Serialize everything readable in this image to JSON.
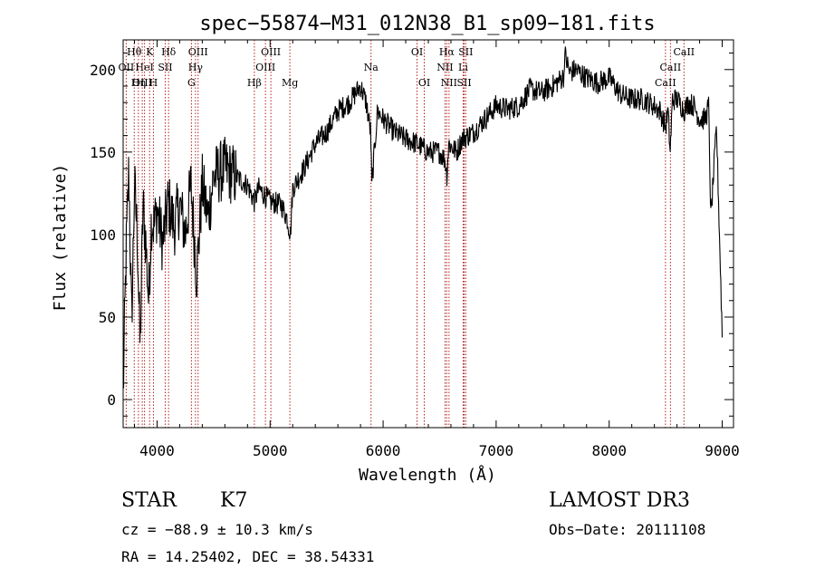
{
  "chart_data": {
    "type": "line",
    "title": "spec−55874−M31_012N38_B1_sp09−181.fits",
    "xlabel": "Wavelength (Å)",
    "ylabel": "Flux (relative)",
    "xlim": [
      3700,
      9100
    ],
    "ylim": [
      -17,
      218
    ],
    "xticks": [
      4000,
      5000,
      6000,
      7000,
      8000,
      9000
    ],
    "xtick_labels": [
      "4000",
      "5000",
      "6000",
      "7000",
      "8000",
      "9000"
    ],
    "yticks": [
      0,
      50,
      100,
      150,
      200
    ],
    "ytick_labels": [
      "0",
      "50",
      "100",
      "150",
      "200"
    ],
    "series": [
      {
        "name": "flux",
        "x": [
          3700,
          3725,
          3750,
          3775,
          3800,
          3825,
          3850,
          3875,
          3900,
          3925,
          3950,
          3975,
          4000,
          4050,
          4100,
          4150,
          4200,
          4250,
          4300,
          4350,
          4400,
          4450,
          4500,
          4600,
          4700,
          4800,
          4860,
          4900,
          5000,
          5100,
          5150,
          5180,
          5200,
          5300,
          5400,
          5500,
          5600,
          5700,
          5800,
          5850,
          5890,
          5900,
          5950,
          6000,
          6100,
          6200,
          6300,
          6400,
          6500,
          6550,
          6563,
          6580,
          6650,
          6700,
          6800,
          6900,
          7000,
          7100,
          7200,
          7300,
          7400,
          7500,
          7600,
          7605,
          7650,
          7700,
          7800,
          7900,
          8000,
          8100,
          8200,
          8300,
          8400,
          8450,
          8500,
          8520,
          8540,
          8560,
          8600,
          8640,
          8662,
          8700,
          8750,
          8800,
          8850,
          8880,
          8900,
          8950,
          9000
        ],
        "y": [
          2,
          85,
          140,
          45,
          130,
          100,
          30,
          118,
          95,
          60,
          110,
          105,
          115,
          95,
          120,
          105,
          118,
          100,
          130,
          75,
          130,
          110,
          135,
          140,
          135,
          130,
          120,
          128,
          120,
          118,
          110,
          100,
          128,
          140,
          155,
          162,
          175,
          180,
          190,
          180,
          162,
          130,
          175,
          170,
          162,
          158,
          155,
          150,
          150,
          145,
          135,
          155,
          150,
          158,
          162,
          170,
          178,
          176,
          178,
          188,
          186,
          190,
          196,
          210,
          198,
          200,
          195,
          192,
          195,
          185,
          182,
          182,
          178,
          175,
          165,
          175,
          150,
          182,
          182,
          178,
          175,
          180,
          178,
          170,
          170,
          178,
          110,
          165,
          40
        ],
        "noise_amplitude": 7
      }
    ],
    "line_markers": [
      {
        "label": "Hθ",
        "wavelength": 3798,
        "row": 0
      },
      {
        "label": "K",
        "wavelength": 3934,
        "row": 0
      },
      {
        "label": "Hδ",
        "wavelength": 4102,
        "row": 0
      },
      {
        "label": "OIII",
        "wavelength": 4363,
        "row": 0
      },
      {
        "label": "OIII",
        "wavelength": 5007,
        "row": 0
      },
      {
        "label": "OI",
        "wavelength": 6300,
        "row": 0
      },
      {
        "label": "Hα",
        "wavelength": 6563,
        "row": 0
      },
      {
        "label": "SII",
        "wavelength": 6731,
        "row": 0
      },
      {
        "label": "CaII",
        "wavelength": 8662,
        "row": 0
      },
      {
        "label": "OII",
        "wavelength": 3727,
        "row": 1
      },
      {
        "label": "HeI",
        "wavelength": 3889,
        "row": 1
      },
      {
        "label": "SII",
        "wavelength": 4072,
        "row": 1
      },
      {
        "label": "Hγ",
        "wavelength": 4340,
        "row": 1
      },
      {
        "label": "OIII",
        "wavelength": 4959,
        "row": 1
      },
      {
        "label": "Na",
        "wavelength": 5893,
        "row": 1
      },
      {
        "label": "NII",
        "wavelength": 6548,
        "row": 1
      },
      {
        "label": "Li",
        "wavelength": 6708,
        "row": 1
      },
      {
        "label": "CaII",
        "wavelength": 8542,
        "row": 1
      },
      {
        "label": "OIII",
        "wavelength": 3869,
        "row": 2
      },
      {
        "label": "Hη",
        "wavelength": 3835,
        "row": 2
      },
      {
        "label": "H",
        "wavelength": 3968,
        "row": 2
      },
      {
        "label": "G",
        "wavelength": 4304,
        "row": 2
      },
      {
        "label": "Hβ",
        "wavelength": 4861,
        "row": 2
      },
      {
        "label": "Mg",
        "wavelength": 5175,
        "row": 2
      },
      {
        "label": "OI",
        "wavelength": 6364,
        "row": 2
      },
      {
        "label": "NII",
        "wavelength": 6583,
        "row": 2
      },
      {
        "label": "SII",
        "wavelength": 6717,
        "row": 2
      },
      {
        "label": "CaII",
        "wavelength": 8498,
        "row": 2
      }
    ]
  },
  "info": {
    "object_class": "STAR",
    "subclass": "K7",
    "survey": "LAMOST DR3",
    "cz": "cz = −88.9 ± 10.3 km/s",
    "obs_date": "Obs−Date: 20111108",
    "radec": "RA =  14.25402, DEC =  38.54331"
  },
  "colors": {
    "marker_line": "#b22222",
    "spectrum": "#000000"
  }
}
